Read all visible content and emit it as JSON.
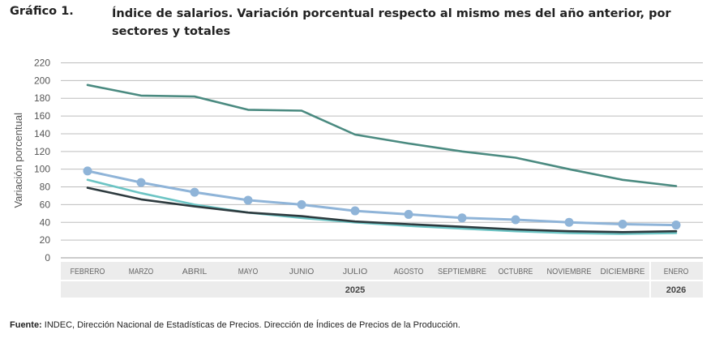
{
  "header": {
    "label": "Gráfico 1.",
    "title": "Índice de salarios. Variación porcentual respecto al mismo mes del año anterior, por sectores y totales"
  },
  "source": {
    "prefix": "Fuente:",
    "text": "INDEC, Dirección Nacional de Estadísticas de Precios. Dirección de Índices de Precios de la Producción."
  },
  "chart_data": {
    "type": "line",
    "title": "",
    "xlabel": "",
    "ylabel": "Variación porcentual",
    "ylim": [
      0,
      220
    ],
    "yticks": [
      0,
      20,
      40,
      60,
      80,
      100,
      120,
      140,
      160,
      180,
      200,
      220
    ],
    "grid": true,
    "categories": [
      "FEBRERO",
      "MARZO",
      "ABRIL",
      "MAYO",
      "JUNIO",
      "JULIO",
      "AGOSTO",
      "SEPTIEMBRE",
      "OCTUBRE",
      "NOVIEMBRE",
      "DICIEMBRE",
      "ENERO"
    ],
    "year_groups": [
      {
        "label": "2025",
        "span": 11
      },
      {
        "label": "2026",
        "span": 1
      }
    ],
    "series": [
      {
        "color": "#4a8a80",
        "markers": false,
        "values": [
          195,
          183,
          182,
          167,
          166,
          139,
          129,
          120,
          113,
          100,
          88,
          81
        ]
      },
      {
        "color": "#8fb4d8",
        "markers": true,
        "values": [
          98,
          85,
          74,
          65,
          60,
          53,
          49,
          45,
          43,
          40,
          38,
          37
        ]
      },
      {
        "color": "#6cc4c4",
        "markers": false,
        "values": [
          88,
          73,
          60,
          51,
          45,
          40,
          36,
          33,
          30,
          28,
          27,
          28
        ]
      },
      {
        "color": "#2d3a3e",
        "markers": false,
        "values": [
          79,
          66,
          58,
          51,
          47,
          41,
          38,
          35,
          32,
          30,
          29,
          30
        ]
      }
    ]
  }
}
